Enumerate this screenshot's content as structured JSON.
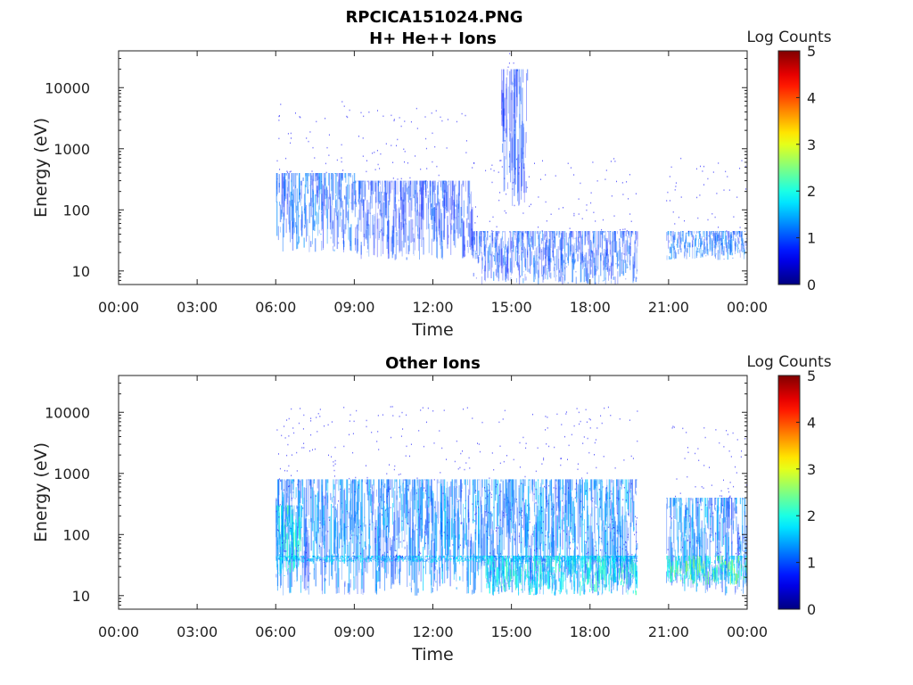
{
  "figure": {
    "title_line1": "RPCICA151024.PNG"
  },
  "chart_data": [
    {
      "type": "heatmap",
      "title": "H+ He++ Ions",
      "xlabel": "Time",
      "ylabel": "Energy (eV)",
      "x_ticks": [
        "00:00",
        "03:00",
        "06:00",
        "09:00",
        "12:00",
        "15:00",
        "18:00",
        "21:00",
        "00:00"
      ],
      "x_range_hours": [
        0,
        24
      ],
      "y_ticks": [
        10,
        100,
        1000,
        10000
      ],
      "y_tick_labels": [
        "10",
        "100",
        "1000",
        "10000"
      ],
      "y_scale": "log",
      "y_range": [
        6,
        40000
      ],
      "colorbar": {
        "label": "Log Counts",
        "range": [
          0,
          5
        ],
        "ticks": [
          "0",
          "1",
          "2",
          "3",
          "4",
          "5"
        ],
        "colormap": "jet"
      },
      "data_gaps_hours": [
        [
          0,
          6.0
        ],
        [
          19.85,
          20.9
        ]
      ],
      "intensity_regions": [
        {
          "t": [
            6.0,
            9.0
          ],
          "e": [
            20,
            400
          ],
          "level": 0.8
        },
        {
          "t": [
            9.0,
            13.5
          ],
          "e": [
            15,
            300
          ],
          "level": 0.6
        },
        {
          "t": [
            13.5,
            19.8
          ],
          "e": [
            6,
            45
          ],
          "level": 0.7
        },
        {
          "t": [
            14.6,
            15.6
          ],
          "e": [
            100,
            20000
          ],
          "level": 0.6
        },
        {
          "t": [
            20.9,
            24.0
          ],
          "e": [
            15,
            45
          ],
          "level": 0.8
        }
      ]
    },
    {
      "type": "heatmap",
      "title": "Other Ions",
      "xlabel": "Time",
      "ylabel": "Energy (eV)",
      "x_ticks": [
        "00:00",
        "03:00",
        "06:00",
        "09:00",
        "12:00",
        "15:00",
        "18:00",
        "21:00",
        "00:00"
      ],
      "x_range_hours": [
        0,
        24
      ],
      "y_ticks": [
        10,
        100,
        1000,
        10000
      ],
      "y_tick_labels": [
        "10",
        "100",
        "1000",
        "10000"
      ],
      "y_scale": "log",
      "y_range": [
        6,
        40000
      ],
      "colorbar": {
        "label": "Log Counts",
        "range": [
          0,
          5
        ],
        "ticks": [
          "0",
          "1",
          "2",
          "3",
          "4",
          "5"
        ],
        "colormap": "jet"
      },
      "data_gaps_hours": [
        [
          0,
          6.0
        ],
        [
          19.85,
          20.9
        ]
      ],
      "intensity_regions": [
        {
          "t": [
            6.0,
            19.8
          ],
          "e": [
            10,
            800
          ],
          "level": 1.0
        },
        {
          "t": [
            6.0,
            7.0
          ],
          "e": [
            20,
            300
          ],
          "level": 1.6
        },
        {
          "t": [
            6.0,
            19.8
          ],
          "e": [
            35,
            45
          ],
          "level": 1.3
        },
        {
          "t": [
            14.0,
            19.8
          ],
          "e": [
            10,
            45
          ],
          "level": 1.5
        },
        {
          "t": [
            20.9,
            24.0
          ],
          "e": [
            10,
            400
          ],
          "level": 1.0
        },
        {
          "t": [
            20.9,
            24.0
          ],
          "e": [
            15,
            45
          ],
          "level": 1.8
        }
      ]
    }
  ]
}
